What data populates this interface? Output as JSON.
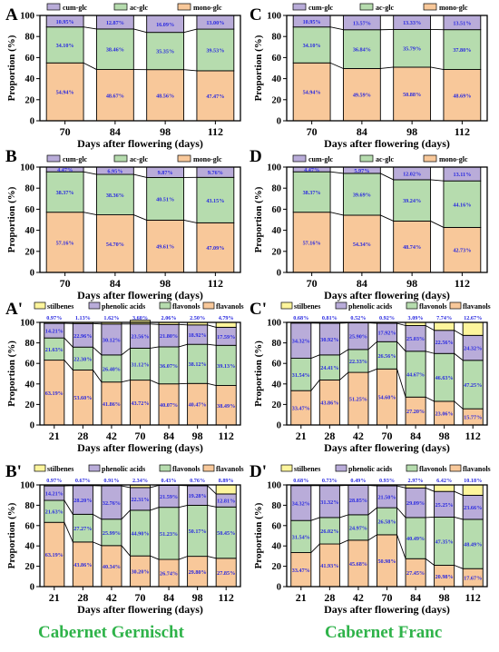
{
  "colors": {
    "cum_glc": "#b9acd9",
    "ac_glc": "#b6dcae",
    "mono_glc": "#f8c89a",
    "stilbenes": "#fdf59c",
    "phenolic_acids": "#b9acd9",
    "flavonols": "#b6dcae",
    "flavanols": "#f8c89a",
    "label_text": "#2a2ae0",
    "caption": "#2fb34a"
  },
  "captions": {
    "left": "Cabernet Gernischt",
    "right": "Cabernet Franc"
  },
  "chart_data": [
    {
      "panel": "A",
      "type": "bar",
      "stacked": true,
      "xlabel": "Days after flowering (days)",
      "ylabel": "Proportion (%)",
      "ylim": [
        0,
        100
      ],
      "yticks": [
        "0",
        "20",
        "40",
        "60",
        "80",
        "100"
      ],
      "categories": [
        "70",
        "84",
        "98",
        "112"
      ],
      "series": [
        {
          "name": "mono-glc",
          "color_key": "mono_glc",
          "values": [
            54.94,
            48.67,
            48.56,
            47.47
          ],
          "labels": [
            "54.94%",
            "48.67%",
            "48.56%",
            "47.47%"
          ]
        },
        {
          "name": "ac-glc",
          "color_key": "ac_glc",
          "values": [
            34.1,
            38.46,
            35.35,
            39.53
          ],
          "labels": [
            "34.10%",
            "38.46%",
            "35.35%",
            "39.53%"
          ]
        },
        {
          "name": "cum-glc",
          "color_key": "cum_glc",
          "values": [
            10.95,
            12.87,
            16.09,
            13.0
          ],
          "labels": [
            "10.95%",
            "12.87%",
            "16.09%",
            "13.00%"
          ]
        }
      ]
    },
    {
      "panel": "C",
      "type": "bar",
      "stacked": true,
      "xlabel": "Days after flowering (days)",
      "ylabel": "Proportion (%)",
      "ylim": [
        0,
        100
      ],
      "yticks": [
        "0",
        "20",
        "40",
        "60",
        "80",
        "100"
      ],
      "categories": [
        "70",
        "84",
        "98",
        "112"
      ],
      "series": [
        {
          "name": "mono-glc",
          "color_key": "mono_glc",
          "values": [
            54.94,
            49.59,
            50.88,
            48.69
          ],
          "labels": [
            "54.94%",
            "49.59%",
            "50.88%",
            "48.69%"
          ]
        },
        {
          "name": "ac-glc",
          "color_key": "ac_glc",
          "values": [
            34.1,
            36.84,
            35.79,
            37.8
          ],
          "labels": [
            "34.10%",
            "36.84%",
            "35.79%",
            "37.80%"
          ]
        },
        {
          "name": "cum-glc",
          "color_key": "cum_glc",
          "values": [
            10.95,
            13.57,
            13.33,
            13.51
          ],
          "labels": [
            "10.95%",
            "13.57%",
            "13.33%",
            "13.51%"
          ]
        }
      ]
    },
    {
      "panel": "B",
      "type": "bar",
      "stacked": true,
      "xlabel": "Days after flowering (days)",
      "ylabel": "Proportion (%)",
      "ylim": [
        0,
        100
      ],
      "yticks": [
        "0",
        "20",
        "40",
        "60",
        "80",
        "100"
      ],
      "categories": [
        "70",
        "84",
        "98",
        "112"
      ],
      "series": [
        {
          "name": "mono-glc",
          "color_key": "mono_glc",
          "values": [
            57.16,
            54.7,
            49.61,
            47.09
          ],
          "labels": [
            "57.16%",
            "54.70%",
            "49.61%",
            "47.09%"
          ]
        },
        {
          "name": "ac-glc",
          "color_key": "ac_glc",
          "values": [
            38.37,
            38.36,
            40.51,
            43.15
          ],
          "labels": [
            "38.37%",
            "38.36%",
            "40.51%",
            "43.15%"
          ]
        },
        {
          "name": "cum-glc",
          "color_key": "cum_glc",
          "values": [
            4.47,
            6.95,
            9.87,
            9.76
          ],
          "labels": [
            "4.47%",
            "6.95%",
            "9.87%",
            "9.76%"
          ]
        }
      ]
    },
    {
      "panel": "D",
      "type": "bar",
      "stacked": true,
      "xlabel": "Days after flowering (days)",
      "ylabel": "Proportion (%)",
      "ylim": [
        0,
        100
      ],
      "yticks": [
        "0",
        "20",
        "40",
        "60",
        "80",
        "100"
      ],
      "categories": [
        "70",
        "84",
        "98",
        "112"
      ],
      "series": [
        {
          "name": "mono-glc",
          "color_key": "mono_glc",
          "values": [
            57.16,
            54.34,
            48.74,
            42.73
          ],
          "labels": [
            "57.16%",
            "54.34%",
            "48.74%",
            "42.73%"
          ]
        },
        {
          "name": "ac-glc",
          "color_key": "ac_glc",
          "values": [
            38.37,
            39.69,
            39.24,
            44.16
          ],
          "labels": [
            "38.37%",
            "39.69%",
            "39.24%",
            "44.16%"
          ]
        },
        {
          "name": "cum-glc",
          "color_key": "cum_glc",
          "values": [
            4.47,
            5.97,
            12.02,
            13.11
          ],
          "labels": [
            "4.47%",
            "5.97%",
            "12.02%",
            "13.11%"
          ]
        }
      ]
    },
    {
      "panel": "A'",
      "type": "bar",
      "stacked": true,
      "xlabel": "Days after flowering (days)",
      "ylabel": "Proportion (%)",
      "ylim": [
        0,
        100
      ],
      "yticks": [
        "0",
        "20",
        "40",
        "60",
        "80",
        "100"
      ],
      "categories": [
        "21",
        "28",
        "42",
        "70",
        "84",
        "98",
        "112"
      ],
      "series": [
        {
          "name": "flavanols",
          "color_key": "flavanols",
          "values": [
            63.19,
            53.6,
            41.86,
            43.72,
            40.07,
            40.47,
            38.49
          ],
          "labels": [
            "63.19%",
            "53.60%",
            "41.86%",
            "43.72%",
            "40.07%",
            "40.47%",
            "38.49%"
          ]
        },
        {
          "name": "flavonols",
          "color_key": "flavonols",
          "values": [
            21.63,
            22.3,
            26.4,
            31.12,
            36.07,
            38.12,
            39.13
          ],
          "labels": [
            "21.63%",
            "22.30%",
            "26.40%",
            "31.12%",
            "36.07%",
            "38.12%",
            "39.13%"
          ]
        },
        {
          "name": "phenolic acids",
          "color_key": "phenolic_acids",
          "values": [
            14.21,
            22.96,
            30.12,
            23.56,
            21.8,
            18.92,
            17.59
          ],
          "labels": [
            "14.21%",
            "22.96%",
            "30.12%",
            "23.56%",
            "21.80%",
            "18.92%",
            "17.59%"
          ]
        },
        {
          "name": "stilbenes",
          "color_key": "stilbenes",
          "values": [
            0.97,
            1.13,
            1.62,
            3.6,
            2.06,
            2.5,
            4.79
          ],
          "labels": [
            "0.97%",
            "1.13%",
            "1.62%",
            "3.60%",
            "2.06%",
            "2.50%",
            "4.79%"
          ]
        }
      ]
    },
    {
      "panel": "C'",
      "type": "bar",
      "stacked": true,
      "xlabel": "Days after flowering (days)",
      "ylabel": "Proportion (%)",
      "ylim": [
        0,
        100
      ],
      "yticks": [
        "0",
        "20",
        "40",
        "60",
        "80",
        "100"
      ],
      "categories": [
        "21",
        "28",
        "42",
        "70",
        "84",
        "98",
        "112"
      ],
      "series": [
        {
          "name": "flavanols",
          "color_key": "flavanols",
          "values": [
            33.47,
            43.86,
            51.25,
            54.6,
            27.2,
            23.06,
            15.77
          ],
          "labels": [
            "33.47%",
            "43.86%",
            "51.25%",
            "54.60%",
            "27.20%",
            "23.06%",
            "15.77%"
          ]
        },
        {
          "name": "flavonols",
          "color_key": "flavonols",
          "values": [
            31.54,
            24.41,
            22.33,
            26.56,
            44.67,
            46.63,
            47.25
          ],
          "labels": [
            "31.54%",
            "24.41%",
            "22.33%",
            "26.56%",
            "44.67%",
            "46.63%",
            "47.25%"
          ]
        },
        {
          "name": "phenolic acids",
          "color_key": "phenolic_acids",
          "values": [
            34.32,
            30.92,
            25.9,
            17.92,
            25.03,
            22.56,
            24.32
          ],
          "labels": [
            "34.32%",
            "30.92%",
            "25.90%",
            "17.92%",
            "25.03%",
            "22.56%",
            "24.32%"
          ]
        },
        {
          "name": "stilbenes",
          "color_key": "stilbenes",
          "values": [
            0.68,
            0.81,
            0.52,
            0.92,
            3.09,
            7.74,
            12.67
          ],
          "labels": [
            "0.68%",
            "0.81%",
            "0.52%",
            "0.92%",
            "3.09%",
            "7.74%",
            "12.67%"
          ]
        }
      ]
    },
    {
      "panel": "B'",
      "type": "bar",
      "stacked": true,
      "xlabel": "Days after flowering (days)",
      "ylabel": "Proportion (%)",
      "ylim": [
        0,
        100
      ],
      "yticks": [
        "0",
        "20",
        "40",
        "60",
        "80",
        "100"
      ],
      "categories": [
        "21",
        "28",
        "42",
        "70",
        "84",
        "98",
        "112"
      ],
      "series": [
        {
          "name": "flavanols",
          "color_key": "flavanols",
          "values": [
            63.19,
            43.86,
            40.34,
            30.2,
            26.74,
            29.8,
            27.85
          ],
          "labels": [
            "63.19%",
            "43.86%",
            "40.34%",
            "30.20%",
            "26.74%",
            "29.80%",
            "27.85%"
          ]
        },
        {
          "name": "flavonols",
          "color_key": "flavonols",
          "values": [
            21.63,
            27.27,
            25.99,
            44.9,
            51.23,
            50.17,
            50.45
          ],
          "labels": [
            "21.63%",
            "27.27%",
            "25.99%",
            "44.90%",
            "51.23%",
            "50.17%",
            "50.45%"
          ]
        },
        {
          "name": "phenolic acids",
          "color_key": "phenolic_acids",
          "values": [
            14.21,
            28.2,
            32.76,
            22.31,
            21.59,
            19.28,
            12.81
          ],
          "labels": [
            "14.21%",
            "28.20%",
            "32.76%",
            "22.31%",
            "21.59%",
            "19.28%",
            "12.81%"
          ]
        },
        {
          "name": "stilbenes",
          "color_key": "stilbenes",
          "values": [
            0.97,
            0.67,
            0.91,
            2.34,
            0.43,
            0.76,
            8.89
          ],
          "labels": [
            "0.97%",
            "0.67%",
            "0.91%",
            "2.34%",
            "0.43%",
            "0.76%",
            "8.89%"
          ]
        }
      ]
    },
    {
      "panel": "D'",
      "type": "bar",
      "stacked": true,
      "xlabel": "Days after flowering (days)",
      "ylabel": "Proportion (%)",
      "ylim": [
        0,
        100
      ],
      "yticks": [
        "0",
        "20",
        "40",
        "60",
        "80",
        "100"
      ],
      "categories": [
        "21",
        "28",
        "42",
        "70",
        "84",
        "98",
        "112"
      ],
      "series": [
        {
          "name": "flavanols",
          "color_key": "flavanols",
          "values": [
            33.47,
            41.93,
            45.68,
            50.98,
            27.45,
            20.98,
            17.67
          ],
          "labels": [
            "33.47%",
            "41.93%",
            "45.68%",
            "50.98%",
            "27.45%",
            "20.98%",
            "17.67%"
          ]
        },
        {
          "name": "flavonols",
          "color_key": "flavonols",
          "values": [
            31.54,
            26.02,
            24.97,
            26.58,
            40.49,
            47.35,
            48.49
          ],
          "labels": [
            "31.54%",
            "26.02%",
            "24.97%",
            "26.58%",
            "40.49%",
            "47.35%",
            "48.49%"
          ]
        },
        {
          "name": "phenolic acids",
          "color_key": "phenolic_acids",
          "values": [
            34.32,
            31.32,
            28.85,
            21.5,
            29.09,
            25.25,
            23.66
          ],
          "labels": [
            "34.32%",
            "31.32%",
            "28.85%",
            "21.50%",
            "29.09%",
            "25.25%",
            "23.66%"
          ]
        },
        {
          "name": "stilbenes",
          "color_key": "stilbenes",
          "values": [
            0.68,
            0.73,
            0.49,
            0.93,
            2.97,
            6.42,
            10.18
          ],
          "labels": [
            "0.68%",
            "0.73%",
            "0.49%",
            "0.93%",
            "2.97%",
            "6.42%",
            "10.18%"
          ]
        }
      ]
    }
  ]
}
